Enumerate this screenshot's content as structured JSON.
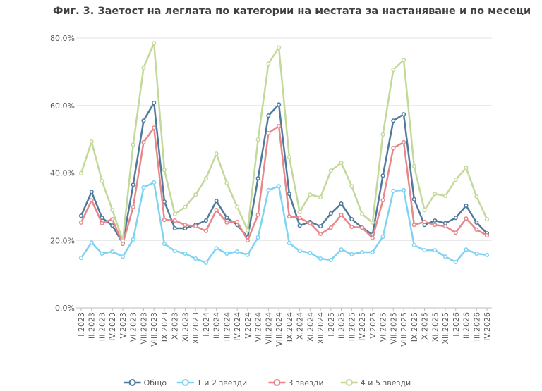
{
  "chart_data": {
    "type": "line",
    "title": "Фиг. 3. Заетост на леглата по категории на местата за настаняване и по месеци",
    "categories": [
      "I.2023",
      "II.2023",
      "III.2023",
      "IV.2023",
      "V.2023",
      "VI.2023",
      "VII.2023",
      "VIII.2023",
      "IX.2023",
      "X.2023",
      "XI.2023",
      "XII.2023",
      "I.2024",
      "II.2024",
      "III.2024",
      "IV.2024",
      "V.2024",
      "VI.2024",
      "VII.2024",
      "VIII.2024",
      "IX.2024",
      "X.2024",
      "XI.2024",
      "XII.2024",
      "I.2025",
      "II.2025",
      "III.2025",
      "IV.2025",
      "V.2025",
      "VI.2025",
      "VII.2025",
      "VIII.2025",
      "IX.2025",
      "X.2025",
      "XI.2025",
      "XII.2025",
      "I.2026",
      "II.2026",
      "III.2026",
      "IV.2026"
    ],
    "series": [
      {
        "name": "Общо",
        "color": "#4f7a9c",
        "values": [
          27.3,
          34.4,
          26.7,
          24.4,
          19.2,
          36.5,
          55.5,
          60.8,
          31.5,
          23.6,
          23.6,
          24.6,
          25.9,
          31.7,
          26.7,
          24.6,
          20.9,
          38.4,
          57.0,
          60.3,
          33.8,
          24.4,
          25.5,
          24.2,
          28.0,
          30.9,
          26.3,
          23.8,
          21.7,
          39.2,
          55.5,
          57.4,
          32.2,
          24.6,
          25.9,
          25.1,
          26.7,
          30.3,
          25.3,
          22.1
        ]
      },
      {
        "name": "1 и 2 звезди",
        "color": "#7fd3f2",
        "values": [
          14.8,
          19.4,
          16.1,
          16.7,
          15.2,
          20.3,
          35.7,
          37.2,
          19.0,
          16.9,
          16.1,
          14.6,
          13.4,
          17.7,
          16.1,
          16.7,
          15.7,
          20.9,
          34.9,
          36.1,
          19.2,
          16.9,
          16.3,
          14.6,
          14.2,
          17.3,
          15.9,
          16.5,
          16.5,
          21.1,
          34.7,
          34.9,
          18.6,
          17.1,
          17.1,
          15.2,
          13.6,
          17.3,
          16.1,
          15.7
        ]
      },
      {
        "name": "3 звезди",
        "color": "#e8868a",
        "values": [
          25.3,
          31.9,
          25.1,
          26.3,
          19.0,
          29.9,
          49.1,
          53.4,
          26.1,
          25.9,
          24.6,
          24.2,
          22.8,
          29.0,
          25.3,
          25.5,
          20.0,
          27.6,
          51.8,
          53.9,
          27.1,
          26.7,
          25.1,
          21.9,
          23.8,
          27.6,
          24.0,
          23.8,
          20.7,
          31.9,
          47.4,
          49.1,
          24.6,
          25.5,
          24.6,
          24.2,
          22.3,
          26.5,
          23.2,
          21.5
        ]
      },
      {
        "name": "4 и 5 звезди",
        "color": "#c2d99a",
        "values": [
          39.9,
          49.3,
          37.6,
          29.0,
          20.0,
          48.4,
          71.2,
          78.5,
          40.9,
          27.8,
          29.9,
          33.6,
          38.4,
          45.7,
          37.0,
          29.9,
          23.0,
          49.9,
          72.4,
          77.2,
          44.7,
          28.4,
          33.6,
          32.8,
          40.7,
          43.0,
          36.1,
          27.8,
          25.3,
          51.4,
          70.6,
          73.5,
          42.0,
          29.0,
          33.8,
          33.2,
          38.0,
          41.5,
          33.0,
          26.3
        ]
      }
    ],
    "ylim": [
      0,
      80
    ],
    "yticks": [
      {
        "value": 0,
        "label": "0.0%"
      },
      {
        "value": 20,
        "label": "20.0%"
      },
      {
        "value": 40,
        "label": "40.0%"
      },
      {
        "value": 60,
        "label": "60.0%"
      },
      {
        "value": 80,
        "label": "80.0%"
      }
    ],
    "grid": true
  }
}
